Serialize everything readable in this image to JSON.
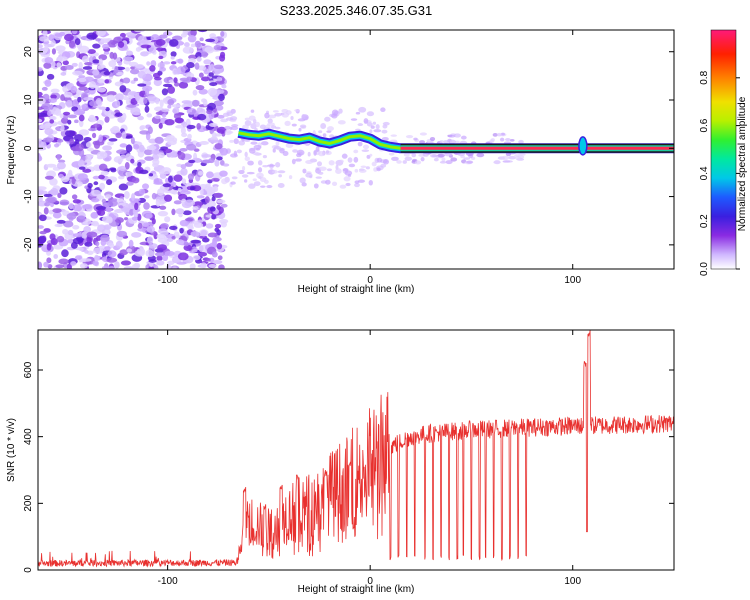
{
  "title": "S233.2025.346.07.35.G31",
  "chart_data": [
    {
      "type": "heatmap",
      "xlabel": "Height of straight line (km)",
      "ylabel": "Frequency (Hz)",
      "xlim": [
        -164,
        150
      ],
      "ylim": [
        -25,
        24.5
      ],
      "xticks": [
        -100,
        0,
        100
      ],
      "xtick_labels": [
        "-100",
        "0",
        "100"
      ],
      "yticks": [
        -20,
        -10,
        0,
        10,
        20
      ],
      "ytick_labels": [
        "-20",
        "-10",
        "0",
        "10",
        "20"
      ],
      "ridge": [
        {
          "x": -65,
          "y": 3.2
        },
        {
          "x": -60,
          "y": 2.8
        },
        {
          "x": -55,
          "y": 2.6
        },
        {
          "x": -50,
          "y": 3.0
        },
        {
          "x": -45,
          "y": 2.5
        },
        {
          "x": -40,
          "y": 2.0
        },
        {
          "x": -35,
          "y": 1.8
        },
        {
          "x": -30,
          "y": 2.2
        },
        {
          "x": -25,
          "y": 1.4
        },
        {
          "x": -20,
          "y": 1.0
        },
        {
          "x": -15,
          "y": 1.6
        },
        {
          "x": -10,
          "y": 2.4
        },
        {
          "x": -5,
          "y": 2.6
        },
        {
          "x": 0,
          "y": 2.0
        },
        {
          "x": 5,
          "y": 0.8
        },
        {
          "x": 10,
          "y": 0.3
        },
        {
          "x": 15,
          "y": 0.0
        },
        {
          "x": 150,
          "y": 0.0
        }
      ],
      "colorbar": {
        "label": "Normalized spectral amplitude",
        "range": [
          0,
          1
        ],
        "ticks": [
          0.0,
          0.2,
          0.4,
          0.6,
          0.8
        ],
        "tick_labels": [
          "0.0",
          "0.2",
          "0.4",
          "0.6",
          "0.8"
        ]
      }
    },
    {
      "type": "line",
      "xlabel": "Height of straight line (km)",
      "ylabel": "SNR (10 * v/v)",
      "xlim": [
        -164,
        150
      ],
      "ylim": [
        0,
        720
      ],
      "xticks": [
        -100,
        0,
        100
      ],
      "xtick_labels": [
        "-100",
        "0",
        "100"
      ],
      "yticks": [
        0,
        200,
        400,
        600
      ],
      "ytick_labels": [
        "0",
        "200",
        "400",
        "600"
      ],
      "color": "#e8312f",
      "envelope": [
        {
          "x": -164,
          "y": 20
        },
        {
          "x": -66,
          "y": 22
        },
        {
          "x": -60,
          "y": 150
        },
        {
          "x": -50,
          "y": 120
        },
        {
          "x": -45,
          "y": 150
        },
        {
          "x": -40,
          "y": 170
        },
        {
          "x": -30,
          "y": 190
        },
        {
          "x": -20,
          "y": 230
        },
        {
          "x": -10,
          "y": 270
        },
        {
          "x": 0,
          "y": 320
        },
        {
          "x": 10,
          "y": 370
        },
        {
          "x": 20,
          "y": 400
        },
        {
          "x": 30,
          "y": 410
        },
        {
          "x": 50,
          "y": 420
        },
        {
          "x": 80,
          "y": 428
        },
        {
          "x": 100,
          "y": 432
        },
        {
          "x": 150,
          "y": 440
        }
      ],
      "spikes": [
        {
          "x": -62,
          "y": 250
        },
        {
          "x": -52,
          "y": 200
        },
        {
          "x": -44,
          "y": 260
        },
        {
          "x": -36,
          "y": 290
        },
        {
          "x": -22,
          "y": 300
        },
        {
          "x": -10,
          "y": 330
        },
        {
          "x": 106,
          "y": 630
        },
        {
          "x": 108,
          "y": 720
        }
      ],
      "dips_x": [
        10,
        14,
        18,
        22,
        27,
        31,
        35,
        39,
        43,
        46,
        50,
        54,
        57,
        61,
        65,
        69,
        73,
        77
      ],
      "dip_floor": 30,
      "notch": {
        "x": 107,
        "y": 115
      }
    }
  ]
}
